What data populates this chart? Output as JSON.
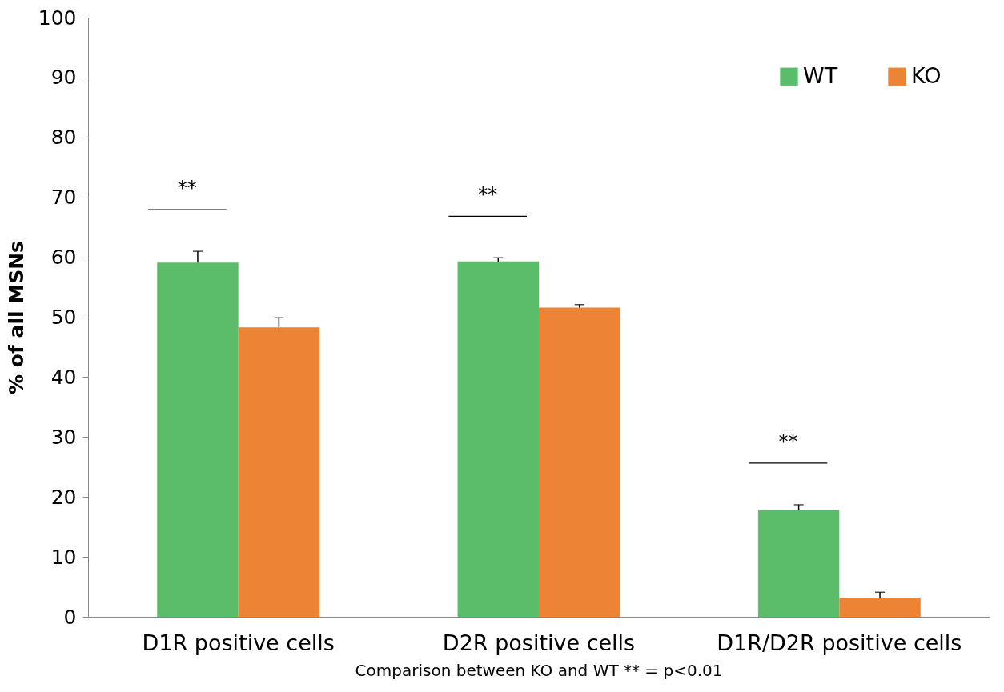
{
  "chart_data": {
    "type": "bar",
    "ylabel": "% of all MSNs",
    "categories": [
      "D1R positive cells",
      "D2R positive cells",
      "D1R/D2R positive cells"
    ],
    "series": [
      {
        "name": "WT",
        "color": "#5bbd6a",
        "values": [
          59.1,
          59.3,
          17.8
        ],
        "errors": [
          1.9,
          0.6,
          0.9
        ]
      },
      {
        "name": "KO",
        "color": "#ed8335",
        "values": [
          48.3,
          51.6,
          3.2
        ],
        "errors": [
          1.6,
          0.5,
          0.9
        ]
      }
    ],
    "ylim": [
      0,
      100
    ],
    "yticks": [
      0,
      10,
      20,
      30,
      40,
      50,
      60,
      70,
      80,
      90,
      100
    ],
    "grid": false,
    "legend": "top right",
    "annotations": [
      "**",
      "**",
      "**",
      "Comparison between KO and WT      ** = p<0.01"
    ]
  }
}
